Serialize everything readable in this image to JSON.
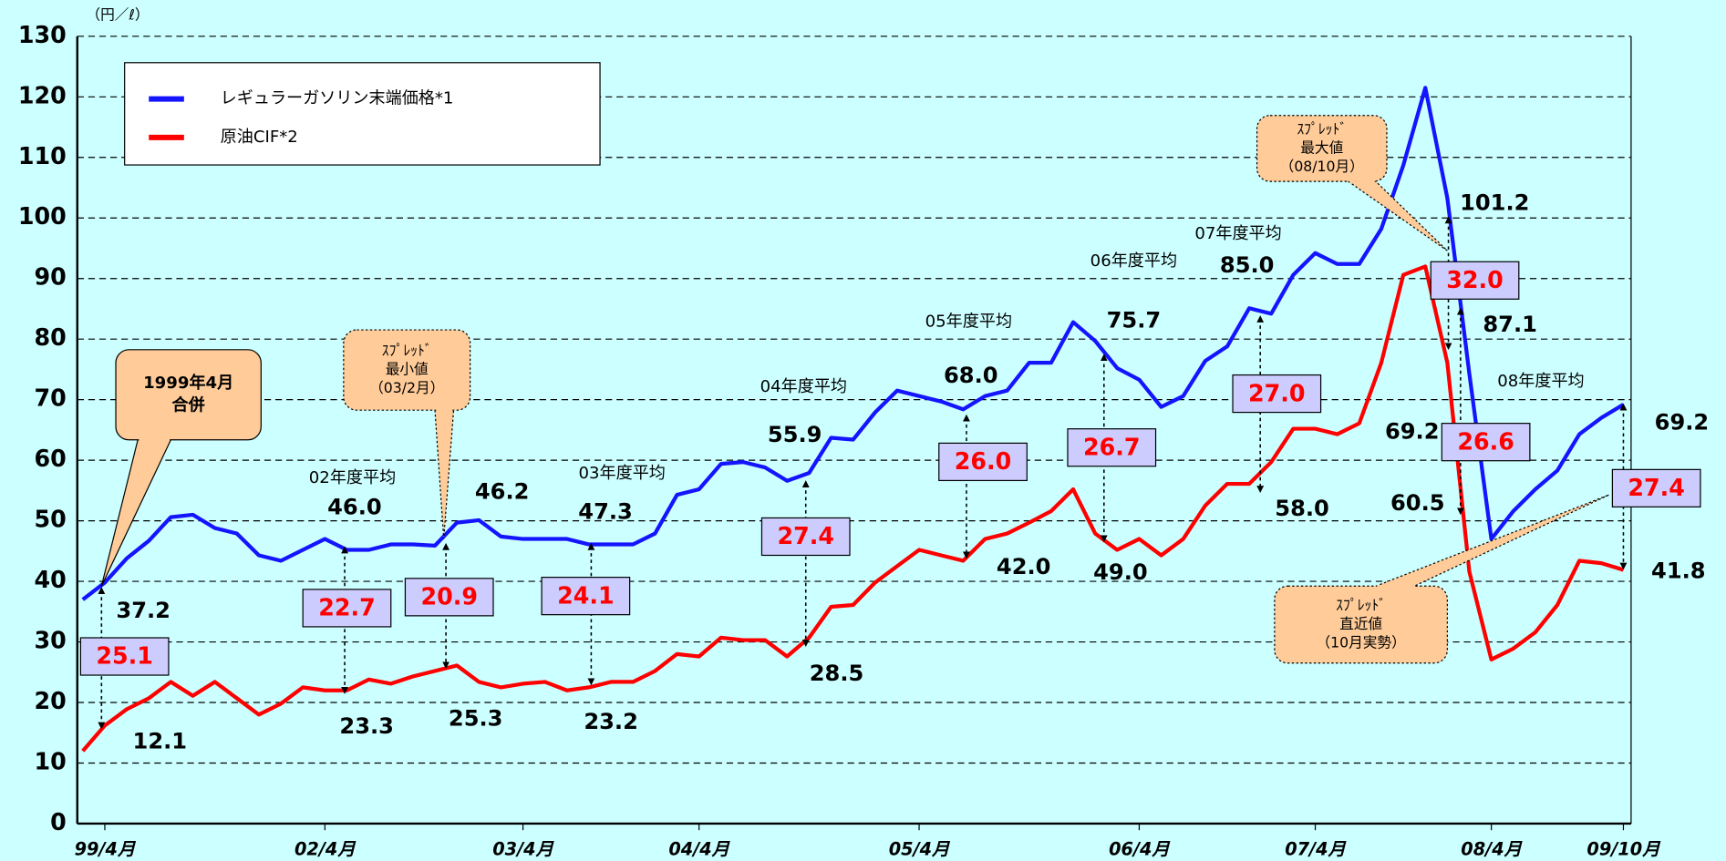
{
  "chart_data": {
    "type": "line",
    "unit_label": "（円／ℓ）",
    "categories": [
      null,
      "99/4月",
      null,
      null,
      null,
      null,
      null,
      null,
      null,
      null,
      null,
      "02/4月",
      null,
      null,
      null,
      null,
      null,
      null,
      null,
      null,
      "03/4月",
      null,
      null,
      null,
      null,
      null,
      null,
      null,
      "04/4月",
      null,
      null,
      null,
      null,
      null,
      null,
      null,
      null,
      null,
      "05/4月",
      null,
      null,
      null,
      null,
      null,
      null,
      null,
      null,
      null,
      "06/4月",
      null,
      null,
      null,
      null,
      null,
      null,
      null,
      "07/4月",
      null,
      null,
      null,
      null,
      null,
      null,
      null,
      "08/4月",
      null,
      null,
      null,
      null,
      null,
      "09/10月"
    ],
    "series": [
      {
        "name": "レギュラーガソリン末端価格*1",
        "color": "#1414ff",
        "values": [
          37.0,
          39.8,
          43.8,
          46.7,
          50.6,
          51.0,
          48.8,
          47.9,
          44.3,
          43.4,
          45.2,
          47.0,
          45.2,
          45.2,
          46.1,
          46.1,
          45.9,
          49.7,
          50.1,
          47.4,
          47.0,
          47.0,
          47.0,
          46.1,
          46.1,
          46.1,
          47.9,
          54.3,
          55.2,
          59.4,
          59.7,
          58.8,
          56.6,
          57.9,
          63.7,
          63.4,
          67.9,
          71.5,
          70.6,
          69.7,
          68.4,
          70.6,
          71.5,
          76.1,
          76.1,
          82.8,
          79.7,
          75.2,
          73.3,
          68.8,
          70.6,
          76.4,
          78.8,
          85.1,
          84.2,
          90.6,
          94.2,
          92.4,
          92.4,
          98.2,
          108.7,
          121.5,
          103.3,
          74.3,
          47.0,
          51.6,
          55.2,
          58.3,
          64.3,
          67.0,
          69.2
        ]
      },
      {
        "name": "原油CIF*2",
        "color": "#ff0000",
        "values": [
          12.0,
          16.2,
          18.9,
          20.7,
          23.4,
          21.1,
          23.4,
          20.7,
          18.0,
          19.8,
          22.5,
          22.0,
          22.0,
          23.8,
          23.1,
          24.3,
          25.2,
          26.1,
          23.4,
          22.5,
          23.1,
          23.4,
          22.0,
          22.5,
          23.4,
          23.4,
          25.2,
          28.0,
          27.6,
          30.7,
          30.3,
          30.3,
          27.6,
          30.7,
          35.8,
          36.1,
          39.8,
          42.5,
          45.2,
          44.3,
          43.4,
          47.0,
          47.9,
          49.7,
          51.6,
          55.2,
          47.9,
          45.2,
          47.0,
          44.3,
          47.0,
          52.5,
          56.1,
          56.1,
          59.7,
          65.2,
          65.2,
          64.3,
          66.1,
          76.1,
          90.6,
          92.0,
          76.1,
          41.6,
          27.1,
          28.9,
          31.6,
          36.1,
          43.4,
          43.0,
          41.9
        ]
      }
    ],
    "ylim": [
      0,
      130
    ],
    "yticks": [
      0,
      10,
      20,
      30,
      40,
      50,
      60,
      70,
      80,
      90,
      100,
      110,
      120,
      130
    ],
    "grid": true,
    "annotations": {
      "averages": [
        "02年度平均",
        "03年度平均",
        "04年度平均",
        "05年度平均",
        "06年度平均",
        "07年度平均",
        "08年度平均"
      ],
      "values": [
        "37.2",
        "12.1",
        "46.0",
        "23.3",
        "46.2",
        "25.3",
        "47.3",
        "23.2",
        "55.9",
        "28.5",
        "68.0",
        "42.0",
        "75.7",
        "49.0",
        "85.0",
        "58.0",
        "101.2",
        "87.1",
        "69.2",
        "60.5",
        "69.2",
        "41.8"
      ],
      "spreads": [
        "25.1",
        "22.7",
        "20.9",
        "24.1",
        "27.4",
        "26.0",
        "26.7",
        "27.0",
        "32.0",
        "26.6",
        "27.4"
      ],
      "callouts": [
        {
          "lines": [
            "1999年4月",
            "合併"
          ]
        },
        {
          "lines": [
            "ｽﾌﾟﾚｯﾄﾞ",
            "最小値",
            "（03/2月）"
          ]
        },
        {
          "lines": [
            "ｽﾌﾟﾚｯﾄﾞ",
            "最大値",
            "（08/10月）"
          ]
        },
        {
          "lines": [
            "ｽﾌﾟﾚｯﾄﾞ",
            "直近値",
            "（10月実勢）"
          ]
        }
      ]
    }
  }
}
